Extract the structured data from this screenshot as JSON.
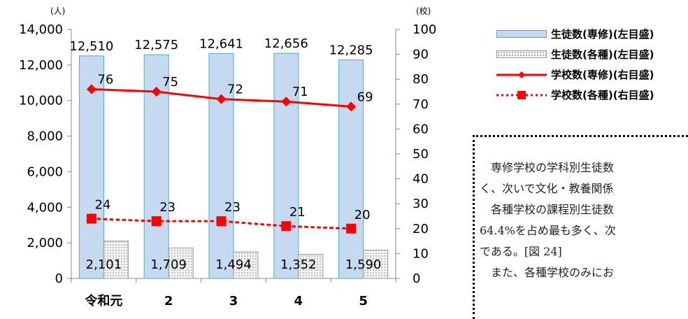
{
  "chart_data": {
    "type": "bar",
    "categories": [
      "令和元",
      "2",
      "3",
      "4",
      "5"
    ],
    "left_unit": "(人)",
    "right_unit": "(校)",
    "left_ticks": [
      "0",
      "2,000",
      "4,000",
      "6,000",
      "8,000",
      "10,000",
      "12,000",
      "14,000"
    ],
    "right_ticks": [
      "0",
      "10",
      "20",
      "30",
      "40",
      "50",
      "60",
      "70",
      "80",
      "90",
      "100"
    ],
    "ylim_left": [
      0,
      14000
    ],
    "ylim_right": [
      0,
      100
    ],
    "bar_series": [
      {
        "name": "生徒数(専修)(左目盛)",
        "values": [
          12510,
          12575,
          12641,
          12656,
          12285
        ],
        "labels": [
          "12,510",
          "12,575",
          "12,641",
          "12,656",
          "12,285"
        ],
        "color": "#c5d9f1"
      },
      {
        "name": "生徒数(各種)(左目盛)",
        "values": [
          2101,
          1709,
          1494,
          1352,
          1590
        ],
        "labels": [
          "2,101",
          "1,709",
          "1,494",
          "1,352",
          "1,590"
        ],
        "color": "#f2f2f2"
      }
    ],
    "line_series": [
      {
        "name": "学校数(専修)(右目盛)",
        "values": [
          76,
          75,
          72,
          71,
          69
        ],
        "labels": [
          "76",
          "75",
          "72",
          "71",
          "69"
        ],
        "color": "#ff0000",
        "style": "solid",
        "marker": "diamond"
      },
      {
        "name": "学校数(各種)(右目盛)",
        "values": [
          24,
          23,
          23,
          21,
          20
        ],
        "labels": [
          "24",
          "23",
          "23",
          "21",
          "20"
        ],
        "color": "#ff0000",
        "style": "dotted",
        "marker": "square"
      }
    ],
    "legend_position": "top-right",
    "grid": false
  },
  "legend": {
    "items": [
      {
        "label": "生徒数(専修)(左目盛)"
      },
      {
        "label": "生徒数(各種)(左目盛)"
      },
      {
        "label": "学校数(専修)(右目盛)"
      },
      {
        "label": "学校数(各種)(右目盛)"
      }
    ]
  },
  "note": {
    "line1": "専修学校の学科別生徒数",
    "line2": "く、次いで文化・教養関係",
    "line3": "各種学校の課程別生徒数",
    "line4": "64.4%を占め最も多く、次",
    "line5": "である。[図 24]",
    "line6": "また、各種学校のみにお"
  }
}
